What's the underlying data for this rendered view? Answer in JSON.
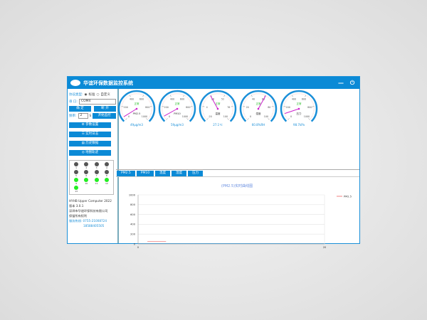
{
  "app": {
    "title": "华谊环保数据监控系统",
    "minimize_icon": "minus-icon",
    "power_icon": "power-icon"
  },
  "side": {
    "protocol_label": "协议类型:",
    "protocol_options": [
      "标准",
      "自定义"
    ],
    "protocol_selected": "标准",
    "port_label": "串   口:",
    "port_value": "COM4",
    "confirm": "确  定",
    "disconnect": "断  开",
    "freq_label": "频率:",
    "freq_value": "2",
    "freq_unit": "S",
    "start": "开始监控",
    "params": "参数设置",
    "log": "实时日志",
    "history": "历史数据",
    "map": "地图轨迹",
    "indicators": [
      {
        "n": "1",
        "on": false
      },
      {
        "n": "2",
        "on": false
      },
      {
        "n": "3",
        "on": false
      },
      {
        "n": "4",
        "on": false
      },
      {
        "n": "5",
        "on": false
      },
      {
        "n": "6",
        "on": false
      },
      {
        "n": "7",
        "on": false
      },
      {
        "n": "8",
        "on": false
      },
      {
        "n": "9",
        "on": true
      },
      {
        "n": "10",
        "on": true
      },
      {
        "n": "11",
        "on": true
      },
      {
        "n": "12",
        "on": true
      },
      {
        "n": "13",
        "on": true
      }
    ],
    "info": [
      "HYHB Upper Computer 2022",
      "版本 3.0.1",
      "深圳市华谊环保科技有限公司",
      "保留所有权利"
    ],
    "hotline_label": "服务热线:",
    "hotline": [
      "0755-21008724",
      "18588405505"
    ]
  },
  "gauges": [
    {
      "name": "PM2.5",
      "min": 0,
      "max": 1000,
      "ticks": [
        "0",
        "200",
        "400",
        "600",
        "800",
        "1000"
      ],
      "value": 49,
      "status": "正常",
      "readout": "49μg/m3"
    },
    {
      "name": "PM10",
      "min": 0,
      "max": 1000,
      "ticks": [
        "0",
        "200",
        "400",
        "600",
        "800",
        "1000"
      ],
      "value": 59,
      "status": "正常",
      "readout": "59μg/m3"
    },
    {
      "name": "温度",
      "min": -20,
      "max": 100,
      "ticks": [
        "-20",
        "4",
        "28",
        "52",
        "76",
        "100"
      ],
      "value": 27.1,
      "status": "正常",
      "readout": "27.1℃"
    },
    {
      "name": "湿度",
      "min": 0,
      "max": 100,
      "ticks": [
        "0",
        "20",
        "40",
        "60",
        "80",
        "100"
      ],
      "value": 60.8,
      "status": "正常",
      "readout": "60.8%RH"
    },
    {
      "name": "压力",
      "min": 0,
      "max": 1000,
      "ticks": [
        "0",
        "200",
        "400",
        "600",
        "800",
        "1000"
      ],
      "value": 98.7,
      "status": "正常",
      "readout": "98.7kPa"
    }
  ],
  "tabs": [
    "PM2.5",
    "PM10",
    "温度",
    "湿度",
    "压力"
  ],
  "chart_data": {
    "type": "line",
    "title": "(PM2.5)实时曲线图",
    "xlim": [
      0,
      20
    ],
    "ylim": [
      0,
      1000
    ],
    "xticks": [
      "0",
      "20"
    ],
    "yticks": [
      "0",
      "200",
      "400",
      "600",
      "800",
      "1000"
    ],
    "grid": true,
    "legend": "top-right",
    "series": [
      {
        "name": "PM2.5",
        "color": "#f08080",
        "x": [
          1,
          3
        ],
        "y": [
          49,
          49
        ]
      }
    ]
  }
}
